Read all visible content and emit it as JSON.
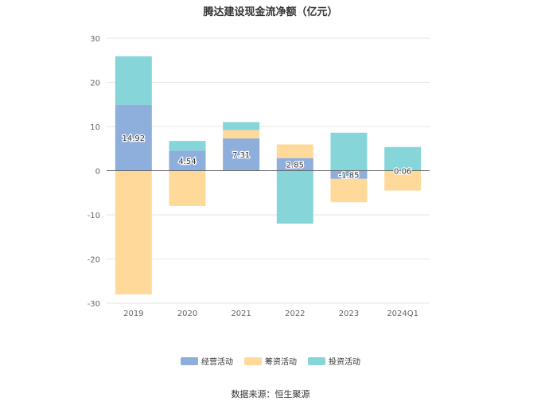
{
  "chart_data": {
    "type": "bar",
    "stacked": true,
    "title": "腾达建设现金流净额（亿元）",
    "categories": [
      "2019",
      "2020",
      "2021",
      "2022",
      "2023",
      "2024Q1"
    ],
    "series": [
      {
        "name": "经营活动",
        "color": "#8eaedc",
        "values": [
          14.92,
          4.54,
          7.31,
          2.85,
          -1.85,
          0.06
        ],
        "labels": [
          "14.92",
          "4.54",
          "7.31",
          "2.85",
          "-1.85",
          "0.06"
        ]
      },
      {
        "name": "筹资活动",
        "color": "#ffd99a",
        "values": [
          -28.0,
          -8.0,
          1.9,
          3.1,
          -5.3,
          -4.5
        ]
      },
      {
        "name": "投资活动",
        "color": "#86d5d9",
        "values": [
          11.0,
          2.2,
          1.8,
          -12.0,
          8.6,
          5.3
        ]
      }
    ],
    "ylim": [
      -30,
      30
    ],
    "yticks": [
      -30,
      -20,
      -10,
      0,
      10,
      20,
      30
    ],
    "ytick_labels": [
      "-30",
      "-20",
      "-10",
      "0",
      "10",
      "20",
      "30"
    ],
    "grid": true,
    "legend_position": "bottom"
  },
  "source": "数据来源：恒生聚源"
}
